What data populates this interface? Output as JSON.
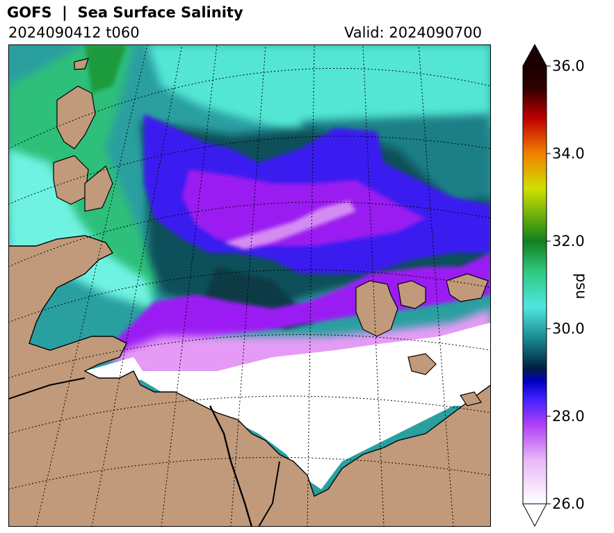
{
  "header": {
    "title": "GOFS  |  Sea Surface Salinity",
    "cycle": "2024090412 t060",
    "valid": "Valid: 2024090700"
  },
  "colorbar": {
    "ticks": [
      "36.0",
      "34.0",
      "32.0",
      "30.0",
      "28.0",
      "26.0"
    ],
    "unit": "psu",
    "range": [
      26.0,
      36.0
    ]
  },
  "colors": {
    "land": "#c19a7b",
    "coastline": "#000000",
    "ice_free_low": "#ffffff"
  }
}
